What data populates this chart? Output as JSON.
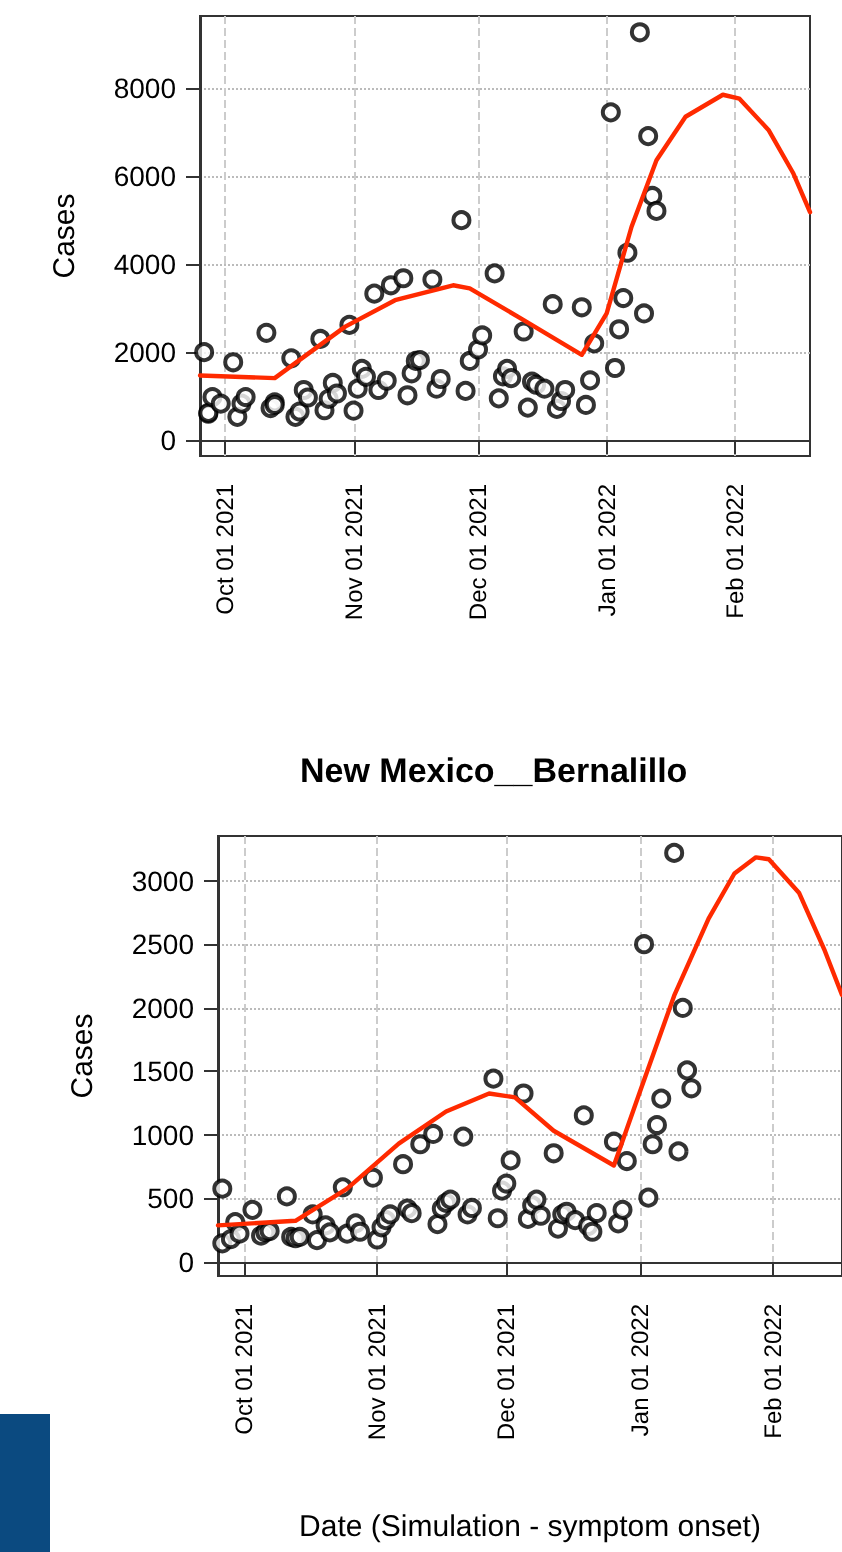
{
  "chart_data": [
    {
      "type": "scatter",
      "ylabel": "Cases",
      "xlim": [
        "2021-09-25",
        "2022-02-19"
      ],
      "ylim": [
        -360,
        9640
      ],
      "yticks": [
        0,
        2000,
        4000,
        6000,
        8000
      ],
      "xticks": [
        {
          "value": "2021-10-01",
          "label": "Oct 01 2021"
        },
        {
          "value": "2021-11-01",
          "label": "Nov 01 2021"
        },
        {
          "value": "2021-12-01",
          "label": "Dec 01 2021"
        },
        {
          "value": "2022-01-01",
          "label": "Jan 01 2022"
        },
        {
          "value": "2022-02-01",
          "label": "Feb 01 2022"
        }
      ],
      "grid": true,
      "marker": "circle",
      "series": [
        {
          "color": "#000000",
          "x": [
            "2021-09-26",
            "2021-09-27",
            "2021-09-27",
            "2021-09-28",
            "2021-09-30",
            "2021-10-03",
            "2021-10-04",
            "2021-10-05",
            "2021-10-06",
            "2021-10-11",
            "2021-10-12",
            "2021-10-13",
            "2021-10-13",
            "2021-10-17",
            "2021-10-18",
            "2021-10-19",
            "2021-10-20",
            "2021-10-21",
            "2021-10-24",
            "2021-10-25",
            "2021-10-26",
            "2021-10-27",
            "2021-10-28",
            "2021-10-31",
            "2021-11-01",
            "2021-11-02",
            "2021-11-03",
            "2021-11-04",
            "2021-11-06",
            "2021-11-07",
            "2021-11-09",
            "2021-11-10",
            "2021-11-13",
            "2021-11-14",
            "2021-11-15",
            "2021-11-16",
            "2021-11-17",
            "2021-11-20",
            "2021-11-21",
            "2021-11-22",
            "2021-11-27",
            "2021-11-28",
            "2021-11-29",
            "2021-12-01",
            "2021-12-02",
            "2021-12-05",
            "2021-12-06",
            "2021-12-07",
            "2021-12-08",
            "2021-12-09",
            "2021-12-12",
            "2021-12-13",
            "2021-12-14",
            "2021-12-15",
            "2021-12-17",
            "2021-12-19",
            "2021-12-20",
            "2021-12-21",
            "2021-12-22",
            "2021-12-26",
            "2021-12-27",
            "2021-12-28",
            "2021-12-29",
            "2022-01-02",
            "2022-01-03",
            "2022-01-04",
            "2022-01-05",
            "2022-01-06",
            "2022-01-09",
            "2022-01-10",
            "2022-01-11",
            "2022-01-12",
            "2022-01-13"
          ],
          "values": [
            2000,
            600,
            620,
            980,
            830,
            1770,
            530,
            830,
            980,
            2440,
            730,
            860,
            800,
            1860,
            530,
            650,
            1140,
            970,
            2300,
            680,
            940,
            1300,
            1060,
            2620,
            670,
            1170,
            1620,
            1440,
            3330,
            1140,
            1350,
            3520,
            3680,
            1020,
            1520,
            1800,
            1820,
            3650,
            1170,
            1390,
            5000,
            1120,
            1800,
            2060,
            2380,
            3790,
            950,
            1450,
            1620,
            1410,
            2470,
            740,
            1330,
            1260,
            1170,
            3090,
            710,
            890,
            1140,
            3020,
            800,
            1360,
            2200,
            7450,
            1640,
            2520,
            3230,
            4260,
            9270,
            2880,
            6910,
            5550,
            5210
          ]
        },
        {
          "type": "line",
          "color": "#ff2a00",
          "marker": "none",
          "x": [
            "2021-09-25",
            "2021-10-13",
            "2021-10-30",
            "2021-11-11",
            "2021-11-25",
            "2021-11-29",
            "2021-12-12",
            "2021-12-26",
            "2022-01-01",
            "2022-01-07",
            "2022-01-13",
            "2022-01-20",
            "2022-01-29",
            "2022-02-02",
            "2022-02-09",
            "2022-02-15",
            "2022-02-19"
          ],
          "values": [
            1470,
            1410,
            2580,
            3180,
            3520,
            3450,
            2730,
            1940,
            2880,
            4850,
            6360,
            7350,
            7850,
            7760,
            7050,
            6060,
            5180
          ]
        }
      ]
    },
    {
      "type": "scatter",
      "title": "New Mexico__Bernalillo",
      "ylabel": "Cases",
      "xlabel": "Date (Simulation - symptom onset)",
      "xlim": [
        "2021-09-25",
        "2022-02-17"
      ],
      "ylim": [
        -110,
        3350
      ],
      "yticks": [
        0,
        500,
        1000,
        1500,
        2000,
        2500,
        3000
      ],
      "xticks": [
        {
          "value": "2021-10-01",
          "label": "Oct 01 2021"
        },
        {
          "value": "2021-11-01",
          "label": "Nov 01 2021"
        },
        {
          "value": "2021-12-01",
          "label": "Dec 01 2021"
        },
        {
          "value": "2022-01-01",
          "label": "Jan 01 2022"
        },
        {
          "value": "2022-02-01",
          "label": "Feb 01 2022"
        }
      ],
      "grid": true,
      "marker": "circle",
      "series": [
        {
          "color": "#000000",
          "x": [
            "2021-09-26",
            "2021-09-26",
            "2021-09-28",
            "2021-09-29",
            "2021-09-30",
            "2021-10-03",
            "2021-10-05",
            "2021-10-06",
            "2021-10-07",
            "2021-10-11",
            "2021-10-12",
            "2021-10-13",
            "2021-10-14",
            "2021-10-17",
            "2021-10-18",
            "2021-10-20",
            "2021-10-21",
            "2021-10-24",
            "2021-10-25",
            "2021-10-27",
            "2021-10-28",
            "2021-10-31",
            "2021-11-01",
            "2021-11-02",
            "2021-11-03",
            "2021-11-04",
            "2021-11-07",
            "2021-11-08",
            "2021-11-09",
            "2021-11-11",
            "2021-11-14",
            "2021-11-15",
            "2021-11-16",
            "2021-11-17",
            "2021-11-18",
            "2021-11-21",
            "2021-11-22",
            "2021-11-23",
            "2021-11-28",
            "2021-11-29",
            "2021-11-30",
            "2021-12-01",
            "2021-12-02",
            "2021-12-05",
            "2021-12-06",
            "2021-12-07",
            "2021-12-08",
            "2021-12-09",
            "2021-12-12",
            "2021-12-13",
            "2021-12-14",
            "2021-12-15",
            "2021-12-17",
            "2021-12-19",
            "2021-12-20",
            "2021-12-21",
            "2021-12-22",
            "2021-12-26",
            "2021-12-27",
            "2021-12-28",
            "2021-12-29",
            "2022-01-02",
            "2022-01-03",
            "2022-01-04",
            "2022-01-05",
            "2022-01-06",
            "2022-01-09",
            "2022-01-10",
            "2022-01-11",
            "2022-01-12",
            "2022-01-13"
          ],
          "values": [
            577,
            147,
            180,
            314,
            223,
            410,
            207,
            233,
            243,
            516,
            197,
            187,
            197,
            374,
            172,
            288,
            233,
            587,
            223,
            304,
            238,
            663,
            177,
            273,
            329,
            374,
            769,
            420,
            384,
            926,
            1007,
            298,
            420,
            465,
            491,
            986,
            374,
            425,
            1442,
            344,
            561,
            617,
            799,
            1325,
            339,
            445,
            491,
            364,
            855,
            263,
            374,
            395,
            329,
            1153,
            283,
            238,
            385,
            946,
            304,
            410,
            794,
            2499,
            506,
            926,
            1077,
            1285,
            3217,
            870,
            1998,
            1507,
            1366
          ]
        },
        {
          "type": "line",
          "color": "#ff2a00",
          "marker": "none",
          "x": [
            "2021-09-25",
            "2021-10-13",
            "2021-10-25",
            "2021-11-06",
            "2021-11-17",
            "2021-11-27",
            "2021-12-03",
            "2021-12-12",
            "2021-12-26",
            "2022-01-01",
            "2022-01-09",
            "2022-01-17",
            "2022-01-23",
            "2022-01-28",
            "2022-01-31",
            "2022-02-07",
            "2022-02-13",
            "2022-02-17"
          ],
          "values": [
            288,
            324,
            577,
            931,
            1184,
            1325,
            1295,
            1032,
            759,
            1335,
            2094,
            2701,
            3055,
            3182,
            3167,
            2904,
            2448,
            2100
          ]
        }
      ]
    }
  ]
}
